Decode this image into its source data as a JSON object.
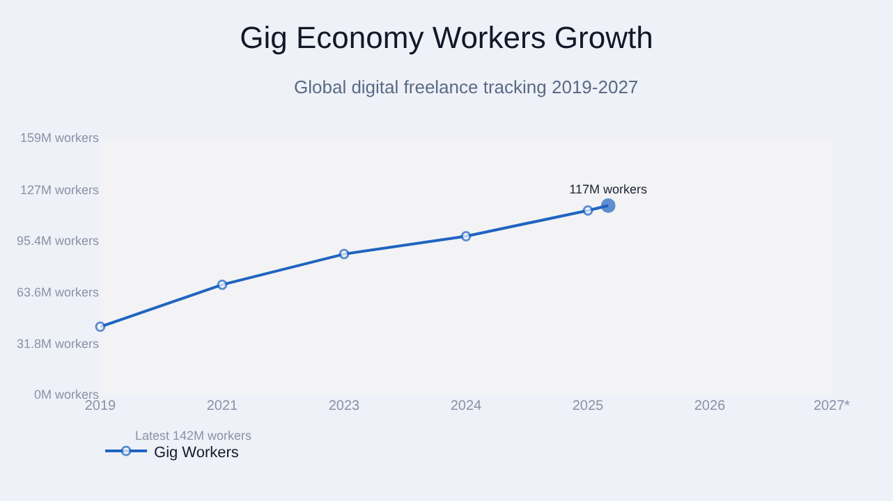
{
  "chart_data": {
    "type": "line",
    "title": "Gig Economy Workers Growth",
    "subtitle": "Global digital freelance tracking 2019-2027",
    "categories": [
      "2019",
      null,
      null,
      null,
      null,
      null,
      "2021",
      null,
      null,
      null,
      null,
      null,
      "2023",
      null,
      null,
      null,
      null,
      null,
      "2024",
      null,
      null,
      null,
      null,
      null,
      "2025",
      null,
      null,
      null,
      null,
      null,
      "2026",
      null,
      null,
      null,
      null,
      null,
      "2027*"
    ],
    "series": [
      {
        "name": "Gig Workers",
        "color": "#1f64c0",
        "values": [
          42,
          null,
          null,
          null,
          null,
          null,
          68,
          null,
          null,
          null,
          null,
          null,
          87,
          null,
          null,
          null,
          null,
          null,
          98,
          null,
          null,
          null,
          null,
          null,
          114,
          117,
          null,
          null,
          null,
          null,
          null,
          null,
          null,
          null,
          null,
          null,
          null
        ],
        "value_labels": [
          null,
          null,
          null,
          null,
          null,
          null,
          null,
          null,
          null,
          null,
          null,
          null,
          null,
          null,
          null,
          null,
          null,
          null,
          null,
          null,
          null,
          null,
          null,
          null,
          null,
          "117M workers",
          null,
          null,
          null,
          null,
          null,
          null,
          null,
          null,
          null,
          null,
          null
        ]
      }
    ],
    "ylim": [
      0,
      159
    ],
    "yticks": [
      {
        "value": 0,
        "label": "0M workers"
      },
      {
        "value": 31.8,
        "label": "31.8M workers"
      },
      {
        "value": 63.6,
        "label": "63.6M workers"
      },
      {
        "value": 95.4,
        "label": "95.4M workers"
      },
      {
        "value": 127,
        "label": "127M workers"
      },
      {
        "value": 159,
        "label": "159M workers"
      }
    ],
    "annotations": [
      "Latest 142M workers"
    ],
    "marker": "circle",
    "line_style": "solid",
    "legend": "bottom"
  }
}
